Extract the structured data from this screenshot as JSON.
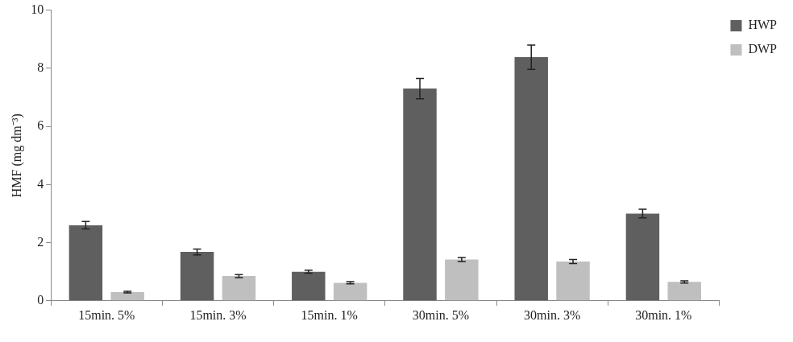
{
  "chart_data": {
    "type": "bar",
    "y_label": "HMF (mg dm⁻³)",
    "categories": [
      "15min. 5%",
      "15min. 3%",
      "15min. 1%",
      "30min. 5%",
      "30min. 3%",
      "30min. 1%"
    ],
    "series": [
      {
        "name": "HWP",
        "color": "#5f5f5f",
        "values": [
          2.6,
          1.68,
          1.0,
          7.3,
          8.38,
          3.0
        ],
        "errors": [
          0.13,
          0.1,
          0.05,
          0.35,
          0.42,
          0.15
        ]
      },
      {
        "name": "DWP",
        "color": "#bfbfbf",
        "values": [
          0.3,
          0.85,
          0.62,
          1.42,
          1.35,
          0.65
        ],
        "errors": [
          0.03,
          0.05,
          0.04,
          0.07,
          0.07,
          0.04
        ]
      }
    ],
    "ylim": [
      0,
      10
    ],
    "yticks": [
      0,
      2,
      4,
      6,
      8,
      10
    ],
    "grid": false,
    "legend": "upper right"
  }
}
